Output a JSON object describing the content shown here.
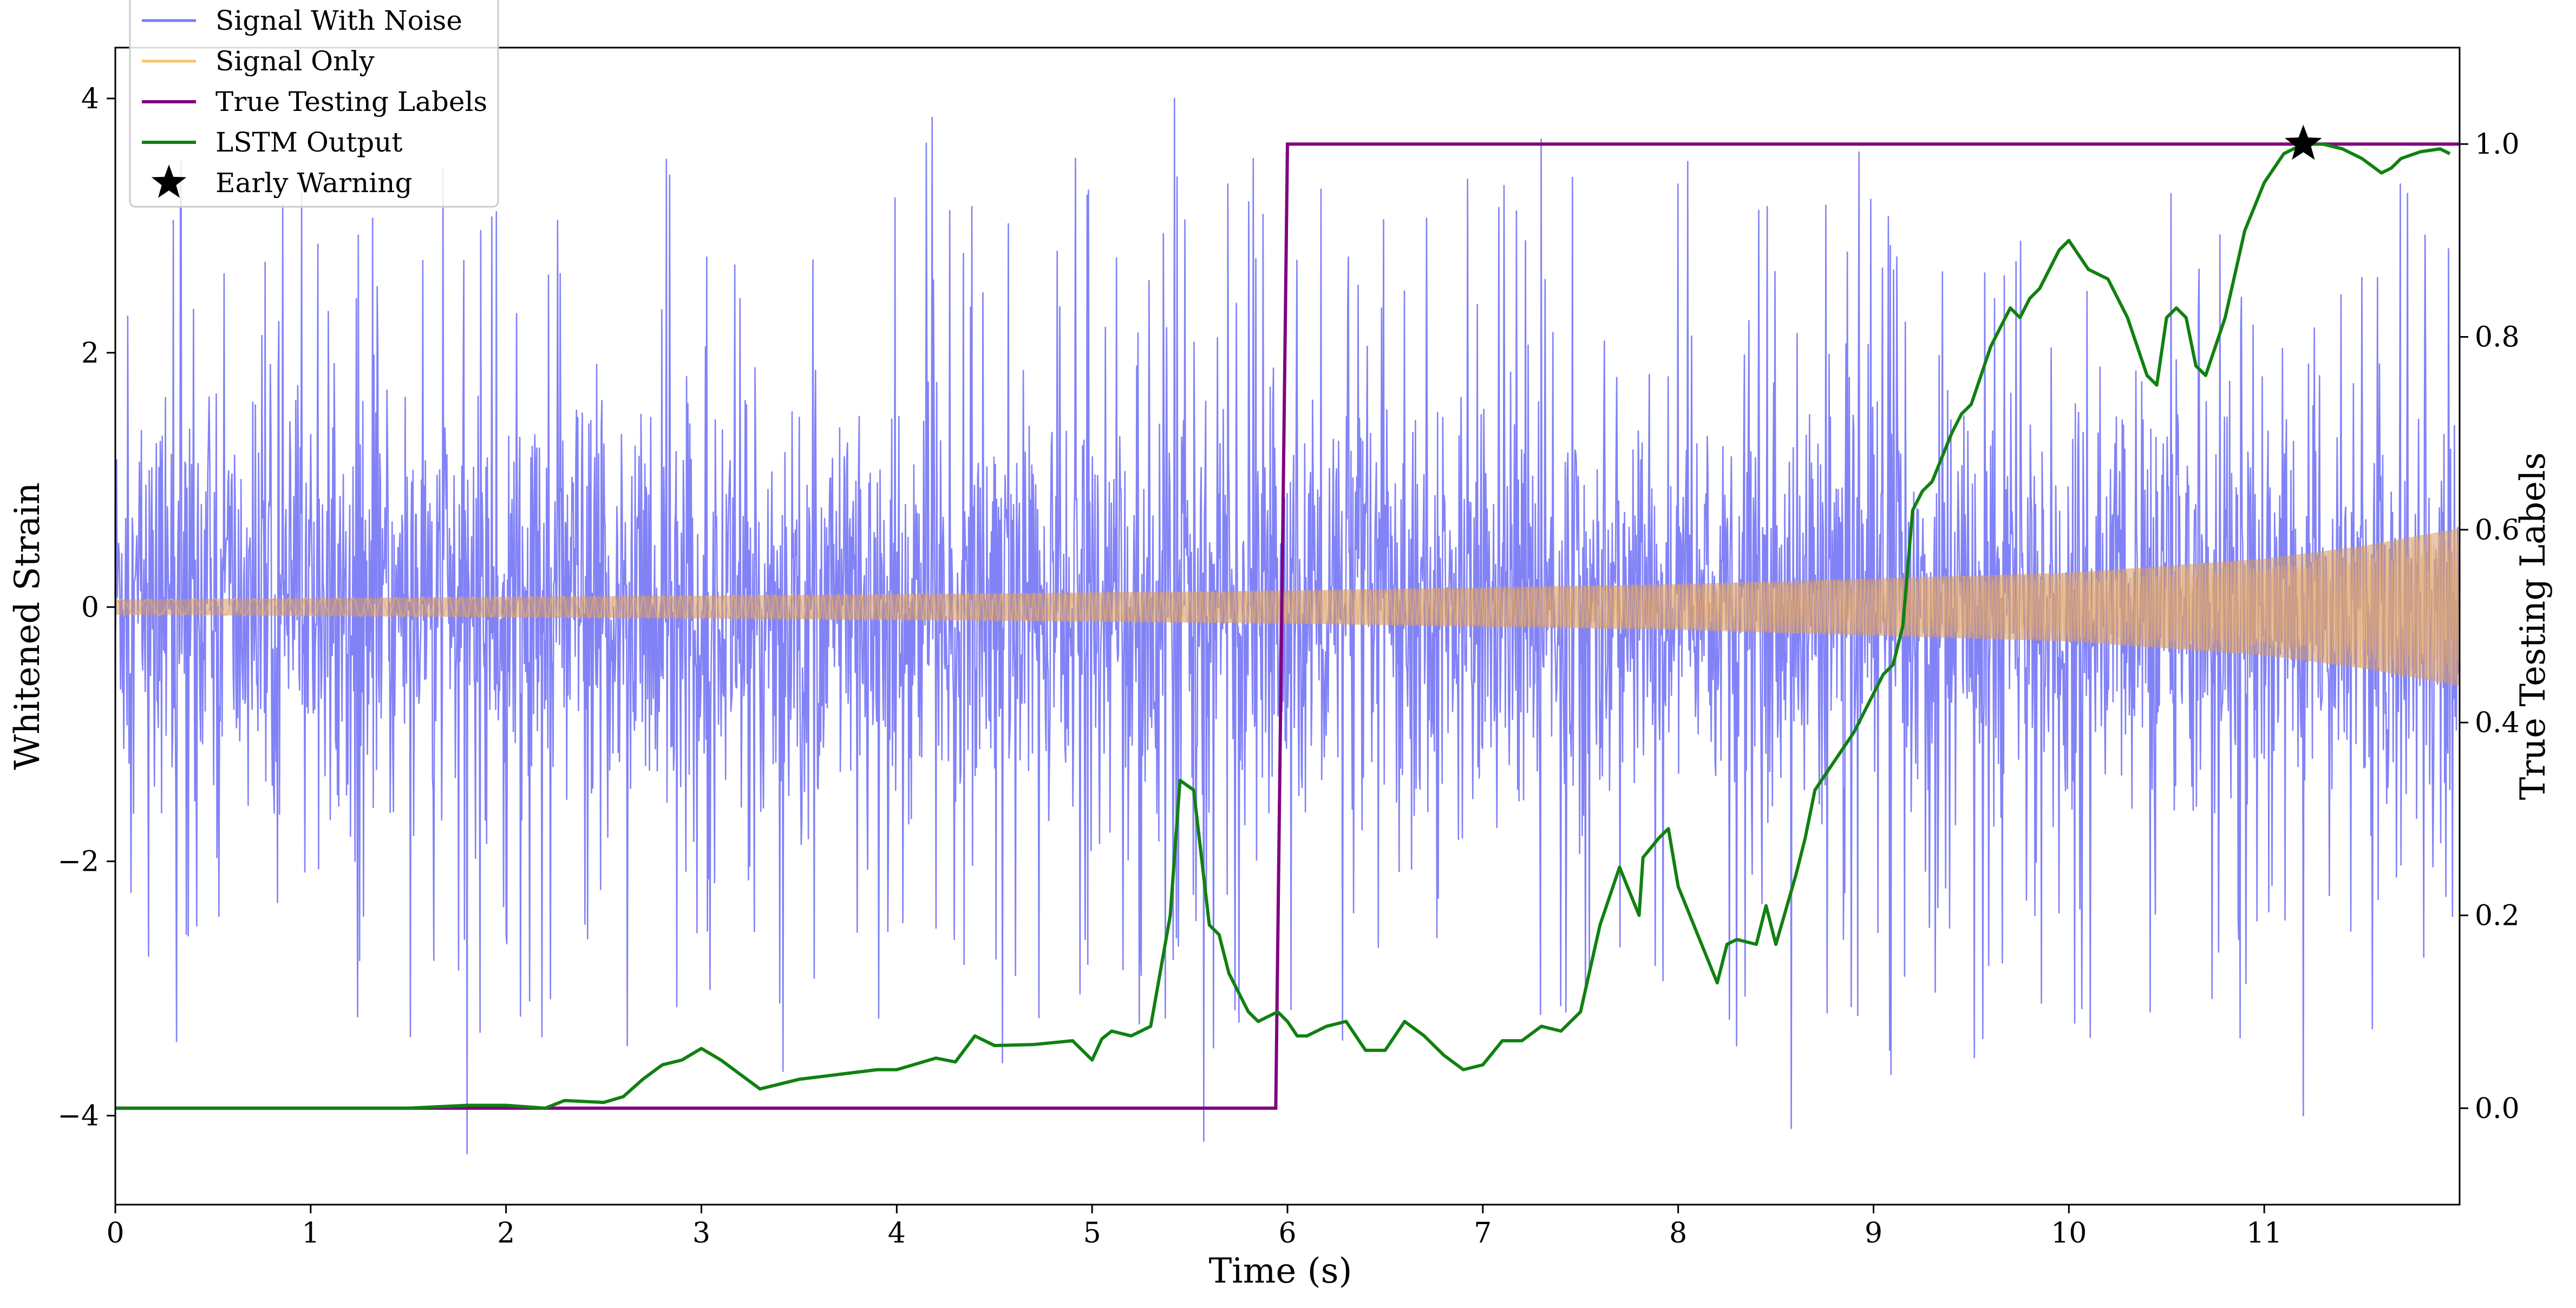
{
  "chart_data": {
    "type": "line",
    "xlabel": "Time (s)",
    "ylabel": "Whitened Strain",
    "y2label": "True Testing Labels",
    "xlim": [
      0,
      12
    ],
    "ylim": [
      -4.7,
      4.4
    ],
    "y2lim": [
      -0.1,
      1.1
    ],
    "x_ticks": [
      0,
      1,
      2,
      3,
      4,
      5,
      6,
      7,
      8,
      9,
      10,
      11
    ],
    "x_tick_labels": [
      "0",
      "1",
      "2",
      "3",
      "4",
      "5",
      "6",
      "7",
      "8",
      "9",
      "10",
      "11"
    ],
    "y_ticks": [
      -4,
      -2,
      0,
      2,
      4
    ],
    "y_tick_labels": [
      "−4",
      "−2",
      "0",
      "2",
      "4"
    ],
    "y2_ticks": [
      0.0,
      0.2,
      0.4,
      0.6,
      0.8,
      1.0
    ],
    "y2_tick_labels": [
      "0.0",
      "0.2",
      "0.4",
      "0.6",
      "0.8",
      "1.0"
    ],
    "grid": false,
    "legend_position": "top-left",
    "legend": [
      "Signal With Noise",
      "Signal Only",
      "True Testing Labels",
      "LSTM Output",
      "Early Warning"
    ],
    "series": [
      {
        "name": "Signal With Noise",
        "axis": "left",
        "color": "#7b7bf7",
        "description_level": "dense noise between about -4.2 and 4.0",
        "typical_range": [
          -2.2,
          2.6
        ],
        "extremes": [
          [
            1.8,
            -4.3
          ],
          [
            4.18,
            3.85
          ],
          [
            5.42,
            4.0
          ],
          [
            5.57,
            -4.2
          ],
          [
            7.3,
            3.68
          ],
          [
            8.58,
            -4.1
          ],
          [
            11.2,
            -4.0
          ]
        ]
      },
      {
        "name": "Signal Only",
        "axis": "left",
        "color": "#fdbf6f",
        "amplitude_envelope": {
          "x": [
            0,
            2,
            4,
            6,
            8,
            10,
            11,
            11.5,
            12
          ],
          "amp": [
            0.06,
            0.08,
            0.1,
            0.13,
            0.18,
            0.27,
            0.38,
            0.48,
            0.62
          ]
        }
      },
      {
        "name": "True Testing Labels",
        "axis": "right",
        "color": "#800080",
        "x": [
          0,
          5.94,
          6.0,
          12
        ],
        "y": [
          0,
          0,
          1,
          1
        ]
      },
      {
        "name": "LSTM Output",
        "axis": "right",
        "color": "#118011",
        "x": [
          0,
          0.5,
          1.0,
          1.5,
          1.8,
          2.0,
          2.2,
          2.3,
          2.5,
          2.6,
          2.7,
          2.8,
          2.9,
          3.0,
          3.1,
          3.3,
          3.5,
          3.7,
          3.9,
          4.0,
          4.2,
          4.3,
          4.4,
          4.5,
          4.7,
          4.9,
          5.0,
          5.05,
          5.1,
          5.2,
          5.3,
          5.4,
          5.45,
          5.52,
          5.6,
          5.65,
          5.7,
          5.8,
          5.85,
          5.9,
          5.95,
          6.0,
          6.05,
          6.1,
          6.2,
          6.3,
          6.4,
          6.5,
          6.6,
          6.7,
          6.8,
          6.9,
          7.0,
          7.1,
          7.2,
          7.3,
          7.4,
          7.5,
          7.6,
          7.7,
          7.8,
          7.82,
          7.9,
          7.95,
          8.0,
          8.1,
          8.2,
          8.25,
          8.3,
          8.4,
          8.45,
          8.5,
          8.6,
          8.65,
          8.7,
          8.8,
          8.9,
          9.0,
          9.05,
          9.1,
          9.15,
          9.2,
          9.25,
          9.3,
          9.4,
          9.45,
          9.5,
          9.55,
          9.6,
          9.65,
          9.7,
          9.75,
          9.8,
          9.85,
          9.9,
          9.95,
          10.0,
          10.1,
          10.2,
          10.25,
          10.3,
          10.4,
          10.45,
          10.5,
          10.55,
          10.6,
          10.65,
          10.7,
          10.8,
          10.9,
          11.0,
          11.1,
          11.2,
          11.3,
          11.4,
          11.5,
          11.6,
          11.65,
          11.7,
          11.8,
          11.9,
          11.95
        ],
        "y": [
          0.0,
          0.0,
          0.0,
          0.0,
          0.003,
          0.003,
          0.0,
          0.008,
          0.006,
          0.012,
          0.03,
          0.045,
          0.05,
          0.062,
          0.05,
          0.02,
          0.03,
          0.035,
          0.04,
          0.04,
          0.052,
          0.048,
          0.075,
          0.065,
          0.066,
          0.07,
          0.05,
          0.072,
          0.08,
          0.075,
          0.085,
          0.2,
          0.34,
          0.33,
          0.19,
          0.18,
          0.14,
          0.1,
          0.09,
          0.095,
          0.1,
          0.09,
          0.075,
          0.075,
          0.085,
          0.09,
          0.06,
          0.06,
          0.09,
          0.075,
          0.055,
          0.04,
          0.045,
          0.07,
          0.07,
          0.085,
          0.08,
          0.1,
          0.19,
          0.25,
          0.2,
          0.26,
          0.28,
          0.29,
          0.23,
          0.18,
          0.13,
          0.17,
          0.175,
          0.17,
          0.21,
          0.17,
          0.24,
          0.28,
          0.33,
          0.36,
          0.39,
          0.43,
          0.45,
          0.46,
          0.5,
          0.62,
          0.64,
          0.65,
          0.7,
          0.72,
          0.73,
          0.76,
          0.79,
          0.81,
          0.83,
          0.82,
          0.84,
          0.85,
          0.87,
          0.89,
          0.9,
          0.87,
          0.86,
          0.84,
          0.82,
          0.76,
          0.75,
          0.82,
          0.83,
          0.82,
          0.77,
          0.76,
          0.82,
          0.91,
          0.96,
          0.99,
          1.0,
          1.0,
          0.995,
          0.985,
          0.97,
          0.975,
          0.985,
          0.992,
          0.995,
          0.99
        ]
      }
    ],
    "annotations": [
      {
        "name": "Early Warning",
        "marker": "star",
        "x": 11.2,
        "y2": 1.0,
        "color": "#000000"
      }
    ]
  }
}
